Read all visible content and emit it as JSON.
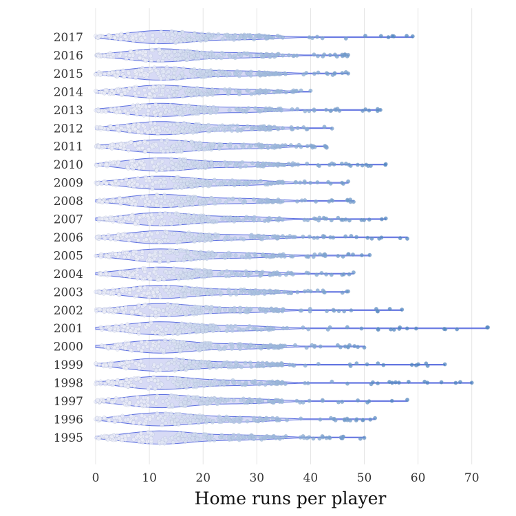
{
  "chart_data": {
    "type": "scatter",
    "subtype": "violin-jitter",
    "title": "",
    "xlabel": "Home runs per player",
    "ylabel": "",
    "xlim": [
      0,
      73
    ],
    "x_ticks": [
      0,
      10,
      20,
      30,
      40,
      50,
      60,
      70
    ],
    "grid": "vertical",
    "categories": [
      "1995",
      "1996",
      "1997",
      "1998",
      "1999",
      "2000",
      "2001",
      "2002",
      "2003",
      "2004",
      "2005",
      "2006",
      "2007",
      "2008",
      "2009",
      "2010",
      "2011",
      "2012",
      "2013",
      "2014",
      "2015",
      "2016",
      "2017"
    ],
    "max_home_runs": {
      "1995": 50,
      "1996": 52,
      "1997": 58,
      "1998": 70,
      "1999": 65,
      "2000": 50,
      "2001": 73,
      "2002": 57,
      "2003": 47,
      "2004": 48,
      "2005": 51,
      "2006": 58,
      "2007": 54,
      "2008": 48,
      "2009": 47,
      "2010": 54,
      "2011": 43,
      "2012": 44,
      "2013": 53,
      "2014": 40,
      "2015": 47,
      "2016": 47,
      "2017": 59
    },
    "min_home_runs": 0,
    "colors": {
      "violin_fill": "#c9cdf2",
      "violin_stroke": "#5b6ee0",
      "point_low": "#eceef8",
      "point_high": "#4f86c0",
      "grid": "#e4e4e4"
    }
  }
}
